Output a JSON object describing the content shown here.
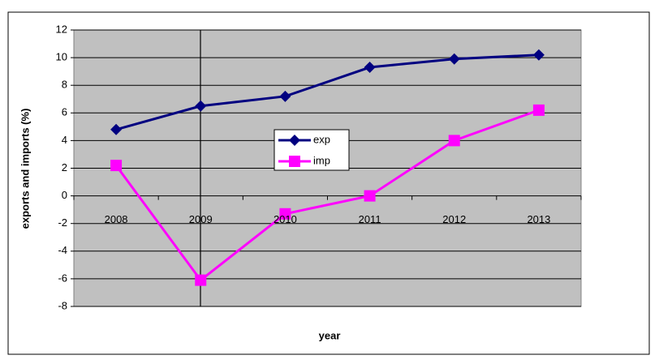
{
  "chart_data": {
    "type": "line",
    "x_label": "year",
    "y_label": "exports and imports (%)",
    "categories": [
      "2008",
      "2009",
      "2010",
      "2011",
      "2012",
      "2013"
    ],
    "series": [
      {
        "name": "exp",
        "color": "#000080",
        "marker": "diamond",
        "values": [
          4.8,
          6.5,
          7.2,
          9.3,
          9.9,
          10.2
        ]
      },
      {
        "name": "imp",
        "color": "#ff00ff",
        "marker": "square",
        "values": [
          2.2,
          -6.1,
          -1.3,
          0.0,
          4.0,
          6.2
        ]
      }
    ],
    "ylim": [
      -8,
      12
    ],
    "yticks": [
      -8,
      -6,
      -4,
      -2,
      0,
      2,
      4,
      6,
      8,
      10,
      12
    ],
    "grid": true
  }
}
